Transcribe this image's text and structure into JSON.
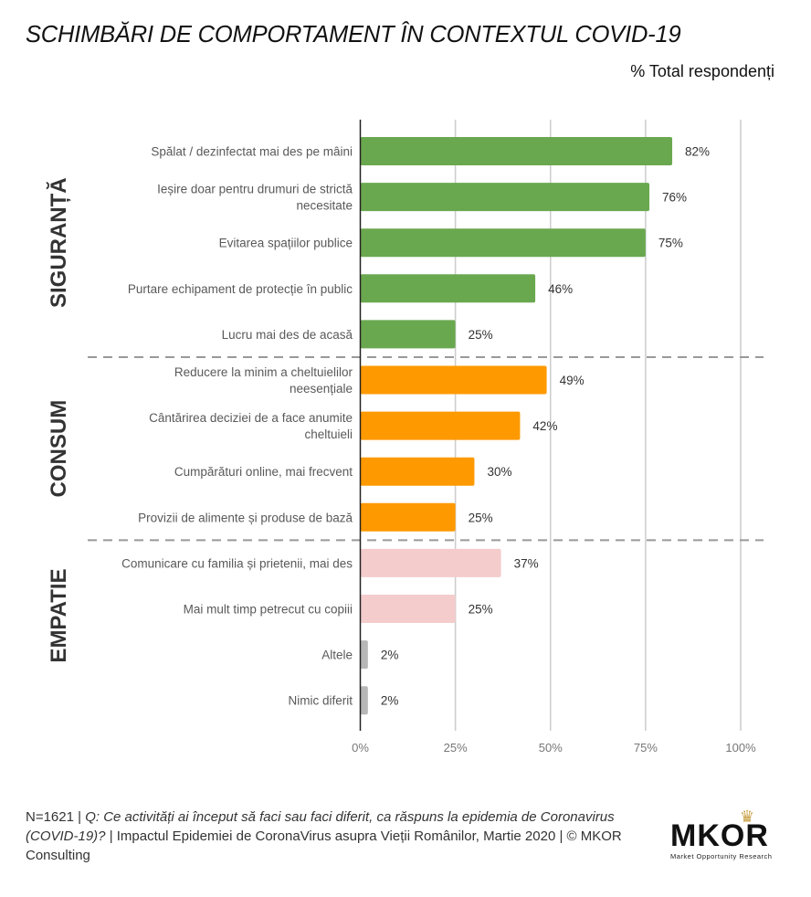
{
  "header": {
    "title": "SCHIMBĂRI DE COMPORTAMENT ÎN CONTEXTUL COVID-19",
    "subtitle": "% Total respondenți"
  },
  "chart_data": {
    "type": "bar",
    "orientation": "horizontal",
    "title": "SCHIMBĂRI DE COMPORTAMENT ÎN CONTEXTUL COVID-19",
    "subtitle": "% Total respondenți",
    "xlabel": "",
    "ylabel": "",
    "xlim": [
      0,
      100
    ],
    "x_ticks": [
      "0%",
      "25%",
      "50%",
      "75%",
      "100%"
    ],
    "x_tick_values": [
      0,
      25,
      50,
      75,
      100
    ],
    "grid": "vertical",
    "legend": "none",
    "groups": [
      {
        "name": "SIGURANȚĂ",
        "start": 0,
        "end": 4
      },
      {
        "name": "CONSUM",
        "start": 5,
        "end": 8
      },
      {
        "name": "EMPATIE",
        "start": 9,
        "end": 12
      }
    ],
    "categories": [
      [
        "Spălat / dezinfectat mai des pe mâini"
      ],
      [
        "Ieșire doar pentru drumuri de strictă",
        "necesitate"
      ],
      [
        "Evitarea spațiilor publice"
      ],
      [
        "Purtare echipament de protecție în public"
      ],
      [
        "Lucru mai des de acasă"
      ],
      [
        "Reducere la minim a cheltuielilor",
        "neesențiale"
      ],
      [
        "Cântărirea deciziei de a face anumite",
        "cheltuieli"
      ],
      [
        "Cumpărături online, mai frecvent"
      ],
      [
        "Provizii de alimente și produse de bază"
      ],
      [
        "Comunicare cu familia și prietenii, mai des"
      ],
      [
        "Mai mult timp petrecut cu copiii"
      ],
      [
        "Altele"
      ],
      [
        "Nimic diferit"
      ]
    ],
    "values": [
      82,
      76,
      75,
      46,
      25,
      49,
      42,
      30,
      25,
      37,
      25,
      2,
      2
    ],
    "value_labels": [
      "82%",
      "76%",
      "75%",
      "46%",
      "25%",
      "49%",
      "42%",
      "30%",
      "25%",
      "37%",
      "25%",
      "2%",
      "2%"
    ],
    "bar_colors": [
      "#6aa84f",
      "#6aa84f",
      "#6aa84f",
      "#6aa84f",
      "#6aa84f",
      "#ff9900",
      "#ff9900",
      "#ff9900",
      "#ff9900",
      "#f4cccc",
      "#f4cccc",
      "#b7b7b7",
      "#b7b7b7"
    ]
  },
  "footer": {
    "n": "N=1621 | ",
    "question": "Q: Ce activități ai început să faci sau faci diferit, ca răspuns la epidemia de Coronavirus (COVID-19)?",
    "source": " | Impactul Epidemiei de CoronaVirus asupra Vieții Românilor, Martie 2020 | © MKOR Consulting"
  },
  "logo": {
    "name": "MKOR",
    "tagline": "Market Opportunity Research",
    "crown": "♛"
  }
}
